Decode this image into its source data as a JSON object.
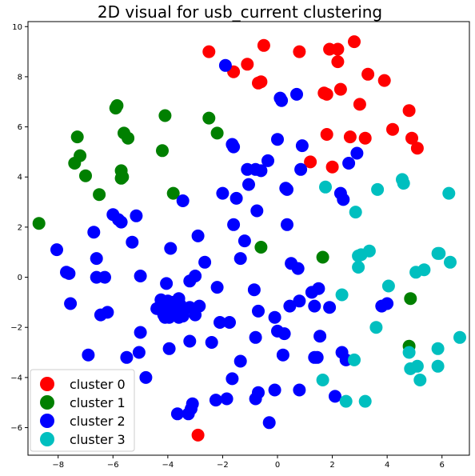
{
  "chart_data": {
    "type": "scatter",
    "title": "2D visual for usb_current clustering",
    "xlabel": "",
    "ylabel": "",
    "xlim": [
      -9.1,
      7.0
    ],
    "ylim": [
      -7.1,
      10.2
    ],
    "xticks": [
      -8,
      -6,
      -4,
      -2,
      0,
      2,
      4,
      6
    ],
    "yticks": [
      -6,
      -4,
      -2,
      0,
      2,
      4,
      6,
      8,
      10
    ],
    "grid": false,
    "legend_position": "lower-left",
    "series": [
      {
        "name": "cluster 0",
        "color": "#ff0000",
        "points": [
          [
            -2.5,
            9.0
          ],
          [
            -1.6,
            8.2
          ],
          [
            -1.1,
            8.5
          ],
          [
            -0.5,
            9.25
          ],
          [
            -0.6,
            7.8
          ],
          [
            -0.7,
            7.75
          ],
          [
            0.8,
            9.0
          ],
          [
            1.9,
            9.1
          ],
          [
            2.2,
            9.1
          ],
          [
            2.8,
            9.4
          ],
          [
            2.2,
            8.6
          ],
          [
            3.3,
            8.1
          ],
          [
            3.9,
            7.85
          ],
          [
            1.7,
            7.35
          ],
          [
            1.8,
            7.3
          ],
          [
            2.3,
            7.5
          ],
          [
            3.0,
            6.9
          ],
          [
            4.8,
            6.65
          ],
          [
            1.8,
            5.7
          ],
          [
            2.65,
            5.6
          ],
          [
            3.2,
            5.55
          ],
          [
            4.2,
            5.9
          ],
          [
            4.9,
            5.55
          ],
          [
            5.1,
            5.15
          ],
          [
            1.2,
            4.6
          ],
          [
            2.0,
            4.4
          ],
          [
            -2.9,
            -6.3
          ]
        ]
      },
      {
        "name": "cluster 1",
        "color": "#008000",
        "points": [
          [
            -5.9,
            6.75
          ],
          [
            -5.85,
            6.85
          ],
          [
            -4.1,
            6.45
          ],
          [
            -2.5,
            6.35
          ],
          [
            -2.2,
            5.75
          ],
          [
            -7.3,
            5.6
          ],
          [
            -5.6,
            5.75
          ],
          [
            -5.45,
            5.55
          ],
          [
            -4.2,
            5.05
          ],
          [
            -7.2,
            4.85
          ],
          [
            -7.4,
            4.55
          ],
          [
            -5.7,
            4.25
          ],
          [
            -5.65,
            4.0
          ],
          [
            -5.7,
            3.95
          ],
          [
            -7.0,
            4.05
          ],
          [
            -6.5,
            3.3
          ],
          [
            -3.8,
            3.35
          ],
          [
            -8.7,
            2.15
          ],
          [
            -0.6,
            1.2
          ],
          [
            1.65,
            0.8
          ],
          [
            4.85,
            -0.85
          ],
          [
            4.8,
            -2.75
          ]
        ]
      },
      {
        "name": "cluster 2",
        "color": "#0000ff",
        "points": [
          [
            -1.9,
            8.45
          ],
          [
            0.1,
            7.15
          ],
          [
            0.15,
            7.05
          ],
          [
            0.7,
            7.3
          ],
          [
            -1.6,
            5.2
          ],
          [
            -1.65,
            5.3
          ],
          [
            0.0,
            5.5
          ],
          [
            0.9,
            5.25
          ],
          [
            -1.1,
            4.3
          ],
          [
            -0.8,
            4.3
          ],
          [
            -0.6,
            4.25
          ],
          [
            -0.35,
            4.65
          ],
          [
            0.85,
            4.3
          ],
          [
            2.9,
            4.95
          ],
          [
            2.6,
            4.55
          ],
          [
            -1.05,
            3.7
          ],
          [
            0.3,
            3.55
          ],
          [
            0.35,
            3.5
          ],
          [
            2.3,
            3.35
          ],
          [
            2.4,
            3.1
          ],
          [
            -3.45,
            3.05
          ],
          [
            -2.0,
            3.35
          ],
          [
            -1.5,
            3.15
          ],
          [
            -0.75,
            2.65
          ],
          [
            -6.0,
            2.5
          ],
          [
            -5.8,
            2.3
          ],
          [
            -5.7,
            2.2
          ],
          [
            -5.15,
            2.45
          ],
          [
            -6.7,
            1.8
          ],
          [
            -1.6,
            2.1
          ],
          [
            0.35,
            2.1
          ],
          [
            -2.9,
            1.65
          ],
          [
            -8.05,
            1.1
          ],
          [
            -5.3,
            1.4
          ],
          [
            -3.9,
            1.15
          ],
          [
            -1.2,
            1.45
          ],
          [
            -6.6,
            0.75
          ],
          [
            -1.35,
            0.75
          ],
          [
            0.5,
            0.55
          ],
          [
            -7.7,
            0.2
          ],
          [
            -7.6,
            0.15
          ],
          [
            -6.6,
            0.0
          ],
          [
            -6.3,
            0.0
          ],
          [
            -5.0,
            0.05
          ],
          [
            -3.2,
            -0.15
          ],
          [
            -3.0,
            0.05
          ],
          [
            -2.65,
            0.6
          ],
          [
            0.75,
            0.35
          ],
          [
            -4.05,
            -0.25
          ],
          [
            -4.25,
            -0.9
          ],
          [
            -4.0,
            -0.95
          ],
          [
            -3.8,
            -1.0
          ],
          [
            -3.6,
            -0.85
          ],
          [
            -3.55,
            -1.1
          ],
          [
            -4.4,
            -1.25
          ],
          [
            -4.2,
            -1.35
          ],
          [
            -3.95,
            -1.2
          ],
          [
            -3.7,
            -1.35
          ],
          [
            -3.2,
            -1.2
          ],
          [
            -2.85,
            -1.15
          ],
          [
            -2.2,
            -0.4
          ],
          [
            -0.85,
            -0.5
          ],
          [
            0.45,
            -1.15
          ],
          [
            0.8,
            -0.95
          ],
          [
            1.25,
            -0.6
          ],
          [
            1.5,
            -0.45
          ],
          [
            1.35,
            -1.15
          ],
          [
            1.9,
            -1.2
          ],
          [
            -7.55,
            -1.05
          ],
          [
            -6.2,
            -1.4
          ],
          [
            -6.45,
            -1.5
          ],
          [
            -4.15,
            -1.5
          ],
          [
            -3.45,
            -1.55
          ],
          [
            -4.1,
            -1.6
          ],
          [
            -3.95,
            -1.6
          ],
          [
            -3.6,
            -1.6
          ],
          [
            -0.7,
            -1.35
          ],
          [
            -0.1,
            -1.6
          ],
          [
            -2.1,
            -1.8
          ],
          [
            -1.75,
            -1.8
          ],
          [
            -5.0,
            -2.2
          ],
          [
            -0.8,
            -2.4
          ],
          [
            0.0,
            -2.15
          ],
          [
            0.25,
            -2.25
          ],
          [
            1.55,
            -2.35
          ],
          [
            -3.2,
            -2.55
          ],
          [
            -2.4,
            -2.6
          ],
          [
            -6.9,
            -3.1
          ],
          [
            -5.5,
            -3.2
          ],
          [
            -5.05,
            -3.0
          ],
          [
            -3.95,
            -2.85
          ],
          [
            0.2,
            -3.1
          ],
          [
            1.35,
            -3.2
          ],
          [
            1.45,
            -3.2
          ],
          [
            2.35,
            -3.0
          ],
          [
            2.5,
            -3.3
          ],
          [
            -1.35,
            -3.35
          ],
          [
            -4.8,
            -4.0
          ],
          [
            -1.65,
            -4.05
          ],
          [
            -0.7,
            -4.6
          ],
          [
            -0.1,
            -4.5
          ],
          [
            0.8,
            -4.5
          ],
          [
            -0.8,
            -4.85
          ],
          [
            -1.85,
            -4.85
          ],
          [
            -2.25,
            -4.9
          ],
          [
            2.1,
            -4.75
          ],
          [
            -3.1,
            -5.05
          ],
          [
            -3.15,
            -5.25
          ],
          [
            -3.65,
            -5.45
          ],
          [
            -3.25,
            -5.45
          ],
          [
            -0.3,
            -5.8
          ],
          [
            3.8,
            -1.15
          ],
          [
            4.0,
            -1.05
          ],
          [
            -3.0,
            -1.5
          ]
        ]
      },
      {
        "name": "cluster 3",
        "color": "#00bfbf",
        "points": [
          [
            1.75,
            3.6
          ],
          [
            4.55,
            3.9
          ],
          [
            4.6,
            3.75
          ],
          [
            3.65,
            3.5
          ],
          [
            6.25,
            3.35
          ],
          [
            2.85,
            2.6
          ],
          [
            2.95,
            0.85
          ],
          [
            3.05,
            0.9
          ],
          [
            3.35,
            1.05
          ],
          [
            2.95,
            0.4
          ],
          [
            5.05,
            0.2
          ],
          [
            5.35,
            0.3
          ],
          [
            5.85,
            0.95
          ],
          [
            5.9,
            0.95
          ],
          [
            6.3,
            0.6
          ],
          [
            2.35,
            -0.7
          ],
          [
            4.05,
            -0.35
          ],
          [
            3.6,
            -2.0
          ],
          [
            6.65,
            -2.4
          ],
          [
            5.85,
            -2.85
          ],
          [
            2.8,
            -3.3
          ],
          [
            4.8,
            -3.0
          ],
          [
            4.85,
            -3.65
          ],
          [
            5.1,
            -3.55
          ],
          [
            5.2,
            -4.1
          ],
          [
            5.85,
            -3.55
          ],
          [
            1.65,
            -4.1
          ],
          [
            2.5,
            -4.95
          ],
          [
            3.2,
            -4.95
          ]
        ]
      }
    ]
  }
}
